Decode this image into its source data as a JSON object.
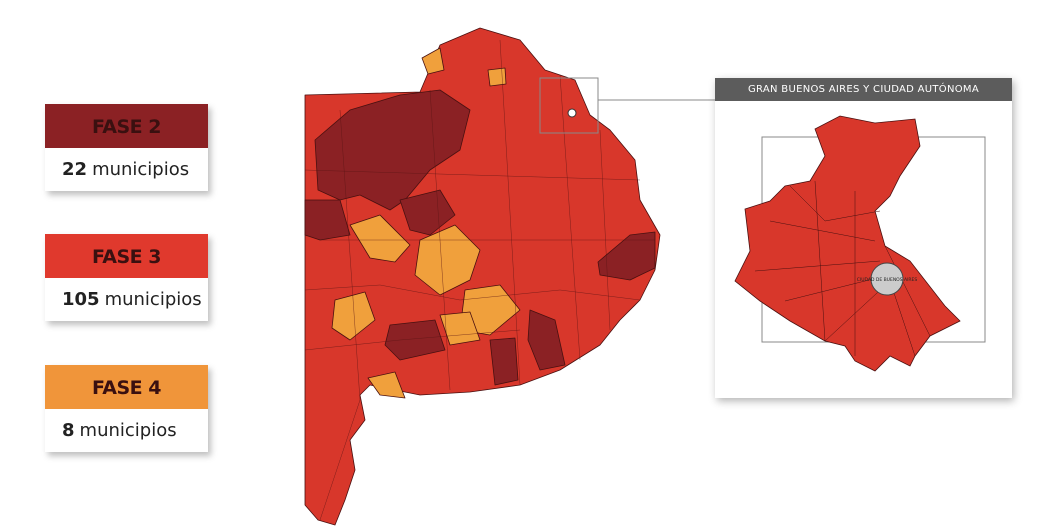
{
  "legend": [
    {
      "phase": "FASE 2",
      "count": 22,
      "unit": "municipios"
    },
    {
      "phase": "FASE 3",
      "count": 105,
      "unit": "municipios"
    },
    {
      "phase": "FASE 4",
      "count": 8,
      "unit": "municipios"
    }
  ],
  "inset": {
    "title": "GRAN BUENOS AIRES Y CIUDAD AUTÓNOMA",
    "city_label": "CIUDAD DE BUENOS AIRES"
  }
}
